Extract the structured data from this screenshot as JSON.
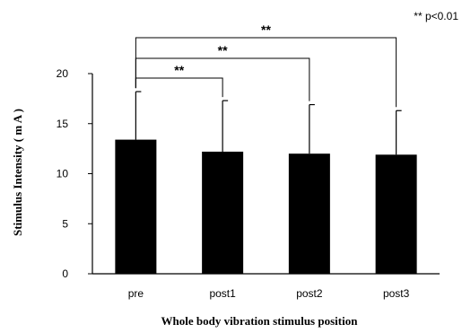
{
  "chart_data": {
    "type": "bar",
    "categories": [
      "pre",
      "post1",
      "post2",
      "post3"
    ],
    "values": [
      13.4,
      12.2,
      12.0,
      11.9
    ],
    "errors": [
      4.8,
      5.1,
      4.9,
      4.4
    ],
    "xlabel": "Whole body vibration stimulus position",
    "ylabel": "Stimulus Intensity ( m A )",
    "ylim": [
      0,
      20
    ],
    "yticks": [
      "0",
      "5",
      "10",
      "15",
      "20"
    ],
    "grid": false,
    "bar_color": "#000000",
    "significance": [
      {
        "from": "pre",
        "to": "post1",
        "label": "**"
      },
      {
        "from": "pre",
        "to": "post2",
        "label": "**"
      },
      {
        "from": "pre",
        "to": "post3",
        "label": "**"
      }
    ],
    "note": "** p<0.01"
  }
}
